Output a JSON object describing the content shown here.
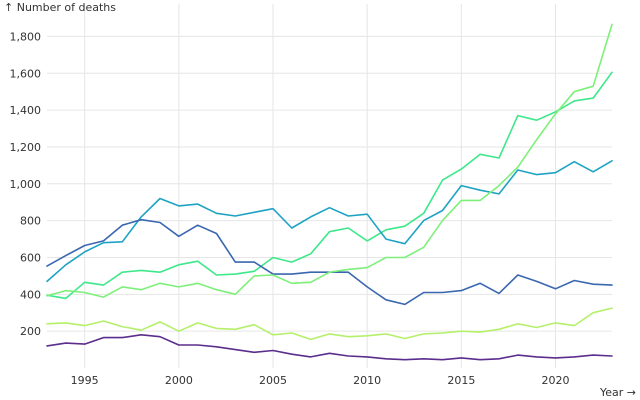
{
  "chart_data": {
    "type": "line",
    "ylabel": "↑ Number of deaths",
    "xlabel": "Year →",
    "xlim": [
      1993,
      2023
    ],
    "ylim": [
      0,
      1900
    ],
    "grid": true,
    "x_ticks": [
      1995,
      2000,
      2005,
      2010,
      2015,
      2020
    ],
    "x_tick_labels": [
      "1995",
      "2000",
      "2005",
      "2010",
      "2015",
      "2020"
    ],
    "y_ticks": [
      200,
      400,
      600,
      800,
      1000,
      1200,
      1400,
      1600,
      1800
    ],
    "y_tick_labels": [
      "200",
      "400",
      "600",
      "800",
      "1,000",
      "1,200",
      "1,400",
      "1,600",
      "1,800"
    ],
    "x": [
      1993,
      1994,
      1995,
      1996,
      1997,
      1998,
      1999,
      2000,
      2001,
      2002,
      2003,
      2004,
      2005,
      2006,
      2007,
      2008,
      2009,
      2010,
      2011,
      2012,
      2013,
      2014,
      2015,
      2016,
      2017,
      2018,
      2019,
      2020,
      2021,
      2022,
      2023
    ],
    "series": [
      {
        "color": "#3ee88a",
        "values": [
          395,
          378,
          465,
          450,
          520,
          530,
          520,
          560,
          580,
          505,
          510,
          525,
          600,
          575,
          620,
          740,
          760,
          690,
          750,
          770,
          840,
          1020,
          1080,
          1160,
          1140,
          1370,
          1345,
          1390,
          1450,
          1465,
          1605
        ]
      },
      {
        "color": "#1ea3c4",
        "values": [
          470,
          560,
          630,
          680,
          685,
          820,
          920,
          880,
          890,
          840,
          825,
          845,
          865,
          760,
          820,
          870,
          825,
          835,
          700,
          675,
          800,
          855,
          990,
          965,
          945,
          1075,
          1050,
          1060,
          1120,
          1065,
          1125
        ]
      },
      {
        "color": "#3a67b0",
        "values": [
          553,
          610,
          665,
          690,
          775,
          805,
          790,
          715,
          775,
          730,
          575,
          575,
          510,
          510,
          520,
          520,
          520,
          440,
          370,
          345,
          410,
          410,
          420,
          460,
          405,
          505,
          470,
          430,
          475,
          455,
          450
        ]
      },
      {
        "color": "#7df07a",
        "values": [
          392,
          420,
          410,
          385,
          440,
          425,
          460,
          440,
          460,
          425,
          400,
          500,
          505,
          460,
          465,
          520,
          535,
          545,
          600,
          600,
          655,
          800,
          910,
          910,
          990,
          1090,
          1240,
          1380,
          1500,
          1530,
          1865
        ]
      },
      {
        "color": "#b5f06a",
        "values": [
          240,
          245,
          230,
          255,
          225,
          205,
          250,
          200,
          245,
          215,
          210,
          235,
          180,
          190,
          155,
          185,
          170,
          175,
          185,
          160,
          185,
          190,
          200,
          195,
          210,
          240,
          220,
          245,
          230,
          300,
          325
        ]
      },
      {
        "color": "#5b2d8c",
        "values": [
          120,
          135,
          130,
          165,
          165,
          180,
          170,
          125,
          125,
          115,
          100,
          85,
          95,
          75,
          60,
          80,
          65,
          60,
          50,
          45,
          50,
          45,
          55,
          45,
          50,
          70,
          60,
          55,
          60,
          70,
          65
        ]
      }
    ]
  }
}
